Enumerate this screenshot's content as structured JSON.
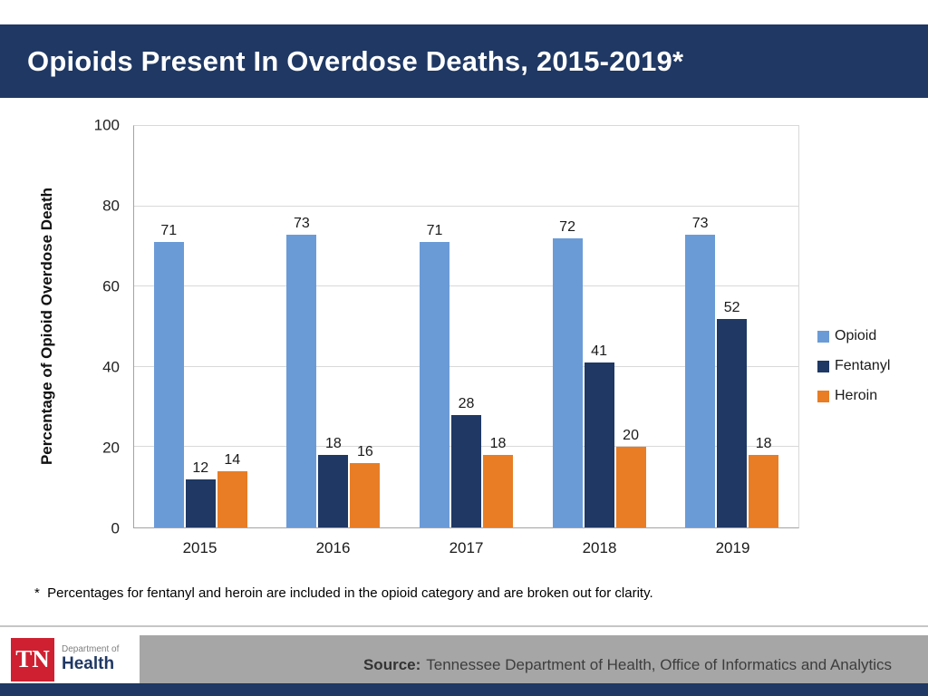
{
  "header": {
    "title": "Opioids Present In Overdose Deaths, 2015-2019*"
  },
  "chart_data": {
    "type": "bar",
    "title": "Opioids Present In Overdose Deaths, 2015-2019*",
    "categories": [
      "2015",
      "2016",
      "2017",
      "2018",
      "2019"
    ],
    "series": [
      {
        "name": "Opioid",
        "color": "#6B9BD6",
        "values": [
          71,
          73,
          71,
          72,
          73
        ]
      },
      {
        "name": "Fentanyl",
        "color": "#1F3864",
        "values": [
          12,
          18,
          28,
          41,
          52
        ]
      },
      {
        "name": "Heroin",
        "color": "#E87D25",
        "values": [
          14,
          16,
          18,
          20,
          18
        ]
      }
    ],
    "xlabel": "",
    "ylabel": "Percentage of Opioid Overdose Death",
    "ylim": [
      0,
      100
    ],
    "yticks": [
      0,
      20,
      40,
      60,
      80,
      100
    ],
    "grid": true,
    "data_labels": true,
    "legend_position": "right"
  },
  "footnote": "*  Percentages for fentanyl and heroin are included in the opioid category and are broken out for clarity.",
  "footer": {
    "source_label": "Source:",
    "source_text": "Tennessee Department of Health, Office of Informatics and Analytics",
    "logo": {
      "tn": "TN",
      "department_of": "Department of",
      "health": "Health"
    }
  },
  "colors": {
    "header_bg": "#1F3864",
    "footer_band": "#A6A6A6",
    "footer_strip": "#1F3864",
    "logo_red": "#CE2030",
    "gridline": "#D9D9D9"
  }
}
